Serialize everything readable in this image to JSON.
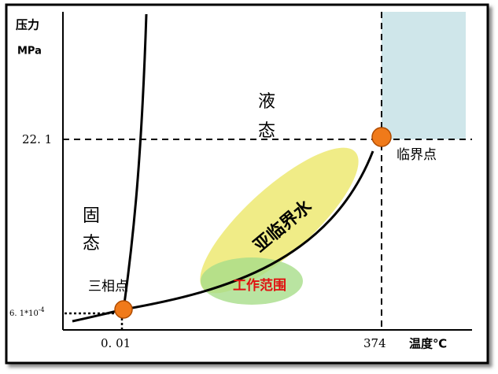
{
  "axes": {
    "y_title": "压力",
    "y_unit": "MPa",
    "x_title": "温度℃",
    "y_labels": [
      {
        "text": "22. 1"
      },
      {
        "text": "6. 1*10",
        "exponent": "-4"
      }
    ],
    "x_labels": [
      "0. 01",
      "374"
    ]
  },
  "regions": {
    "liquid": [
      "液",
      "态"
    ],
    "solid": [
      "固",
      "态"
    ]
  },
  "points": {
    "critical": "临界点",
    "triple": "三相点"
  },
  "areas": {
    "subcritical": "亚临界水",
    "working": "工作范围"
  }
}
